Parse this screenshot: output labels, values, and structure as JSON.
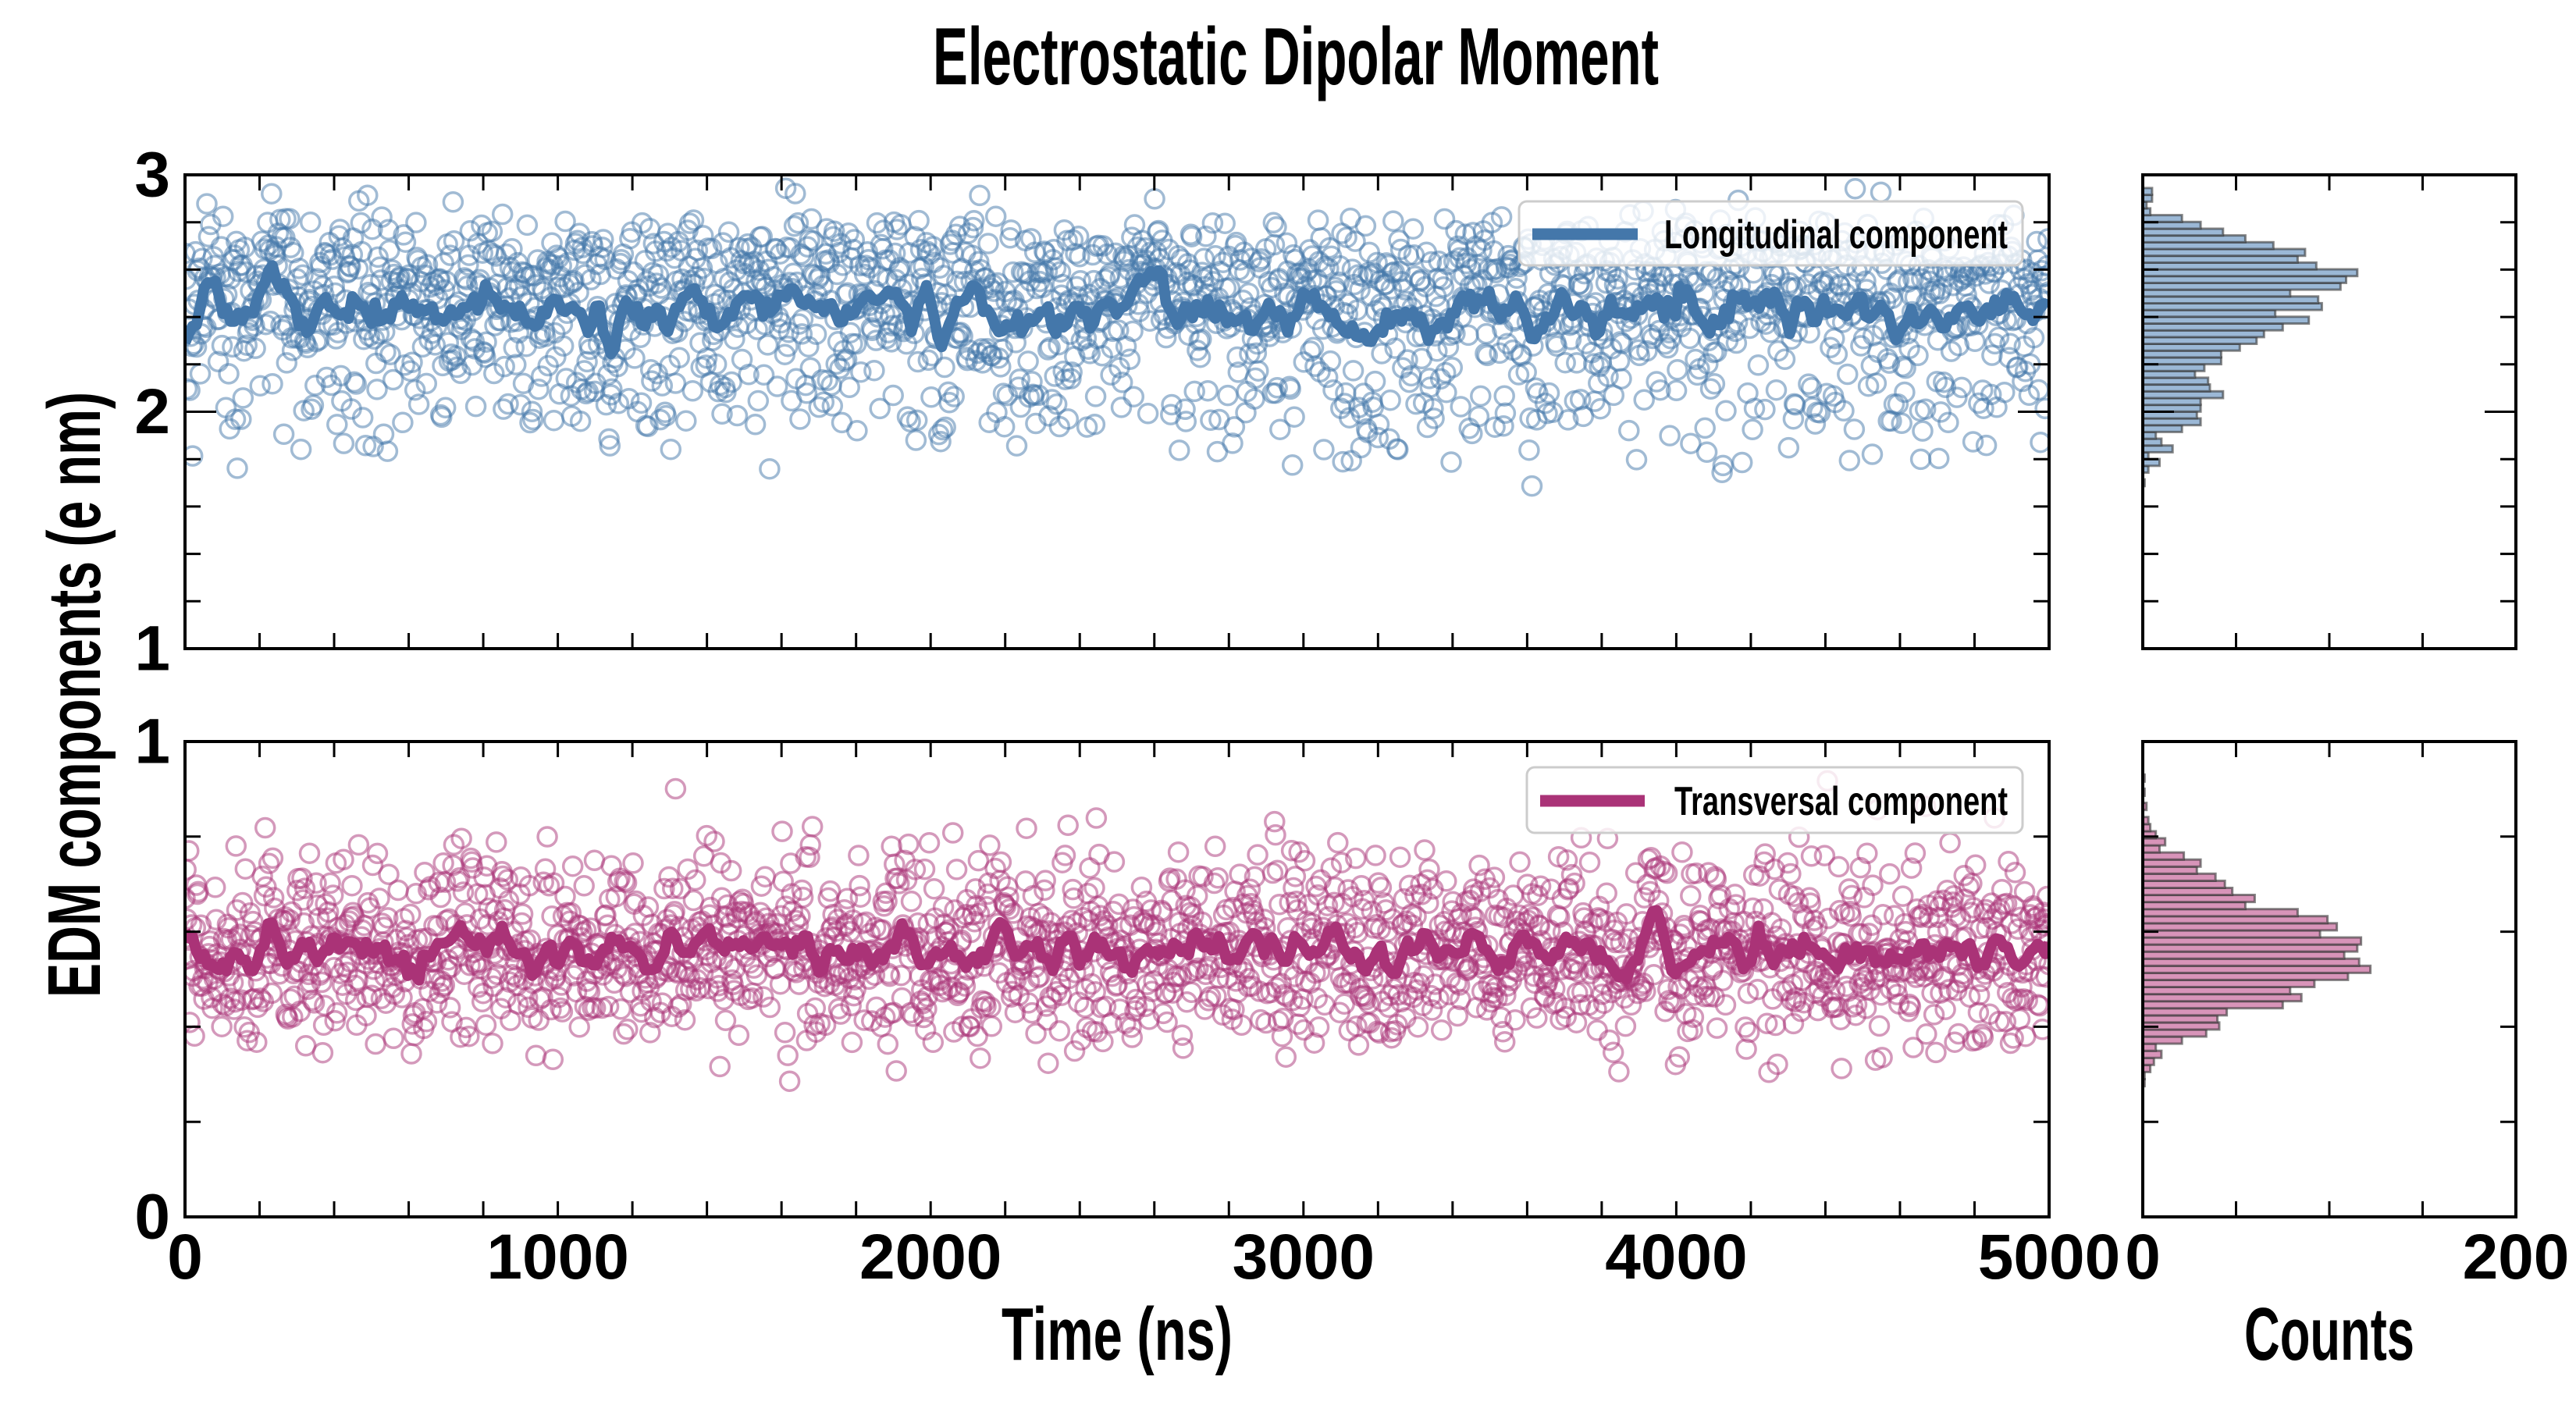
{
  "chart_data": [
    {
      "type": "scatter",
      "title": "Electrostatic Dipolar Moment",
      "shared_ylabel": "EDM components (e nm)",
      "xlabel": "Time (ns)",
      "xlim": [
        0,
        5000
      ],
      "xticks": [
        "0",
        "1000",
        "2000",
        "3000",
        "4000",
        "5000"
      ],
      "panels": [
        {
          "name": "Longitudinal component",
          "legend": "Longitudinal component",
          "legend_position": "top-right",
          "color": "#4477aa",
          "ylim": [
            1,
            3
          ],
          "yticks": [
            "1",
            "2",
            "3"
          ],
          "line": "rolling mean of scatter",
          "n_points": 1962,
          "histogram": {
            "bin_start": 1.686,
            "bin_width": 0.0286,
            "counts": [
              1,
              0,
              3,
              9,
              3,
              16,
              10,
              7,
              21,
              31,
              29,
              31,
              31,
              43,
              36,
              35,
              28,
              33,
              42,
              42,
              52,
              61,
              65,
              75,
              89,
              71,
              96,
              94,
              79,
              106,
              109,
              115,
              93,
              83,
              87,
              70,
              55,
              43,
              31,
              21,
              4,
              2,
              5,
              5
            ],
            "fill": "#9bb8d6"
          }
        },
        {
          "name": "Transversal component",
          "legend": "Transversal component",
          "legend_position": "top-right",
          "color": "#aa3377",
          "ylim": [
            0,
            1
          ],
          "yticks": [
            "0",
            "1"
          ],
          "line": "rolling mean of scatter",
          "n_points": 1977,
          "histogram": {
            "bin_start": 0.275,
            "bin_width": 0.0149,
            "counts": [
              1,
              1,
              4,
              6,
              10,
              7,
              21,
              34,
              41,
              40,
              45,
              75,
              85,
              79,
              92,
              110,
              122,
              116,
              108,
              115,
              117,
              95,
              104,
              99,
              83,
              55,
              60,
              48,
              44,
              39,
              29,
              31,
              22,
              9,
              12,
              7,
              4,
              3,
              0,
              2,
              0,
              1,
              0,
              1
            ],
            "fill": "#d894b9"
          }
        }
      ],
      "histogram_axis": {
        "xlabel": "Counts",
        "xlim": [
          0,
          200
        ],
        "xticks": [
          "0",
          "200"
        ]
      }
    }
  ]
}
